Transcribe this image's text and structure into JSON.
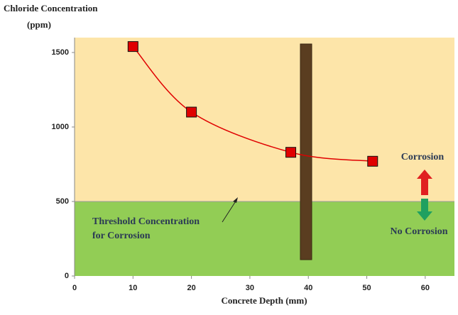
{
  "chart_data": {
    "type": "line",
    "y_label": [
      "Chloride Concentration",
      "(ppm)"
    ],
    "x_label": "Concrete Depth (mm)",
    "x": [
      10,
      20,
      37,
      51
    ],
    "series": [
      {
        "color": "#e00000",
        "values": [
          1540,
          1100,
          830,
          770
        ]
      }
    ],
    "xlim": [
      0,
      65
    ],
    "xticks": [
      0,
      10,
      20,
      30,
      40,
      50,
      60
    ],
    "ylim": [
      0,
      1600
    ],
    "yticks": [
      0,
      500,
      1000,
      1500
    ],
    "threshold": 500,
    "above_color": "#fde5a9",
    "below_color": "#92cd55",
    "annotations": [
      "Threshold Concentration",
      "for Corrosion",
      "Corrosion",
      "No Corrosion"
    ]
  }
}
